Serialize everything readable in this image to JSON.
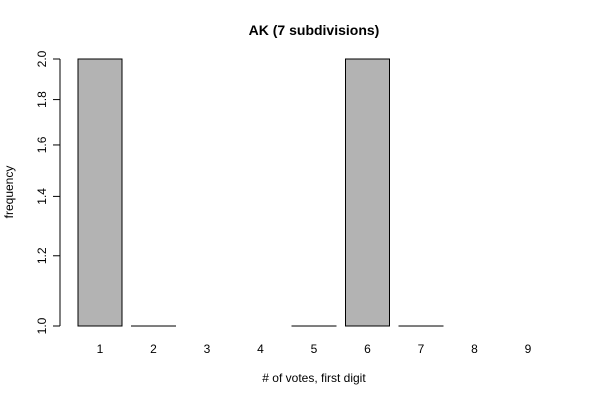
{
  "chart_data": {
    "type": "bar",
    "title": "AK (7 subdivisions)",
    "xlabel": "# of votes, first digit",
    "ylabel": "frequency",
    "categories": [
      "1",
      "2",
      "3",
      "4",
      "5",
      "6",
      "7",
      "8",
      "9"
    ],
    "values": [
      2,
      1,
      null,
      null,
      1,
      2,
      1,
      null,
      null
    ],
    "ylim": [
      1.0,
      2.0
    ],
    "yticks": [
      "1.0",
      "1.2",
      "1.4",
      "1.6",
      "1.8",
      "2.0"
    ],
    "y_scale": "log",
    "grid": false,
    "legend": "none",
    "bar_color": "#b3b3b3",
    "bar_edge_color": "#000000"
  }
}
